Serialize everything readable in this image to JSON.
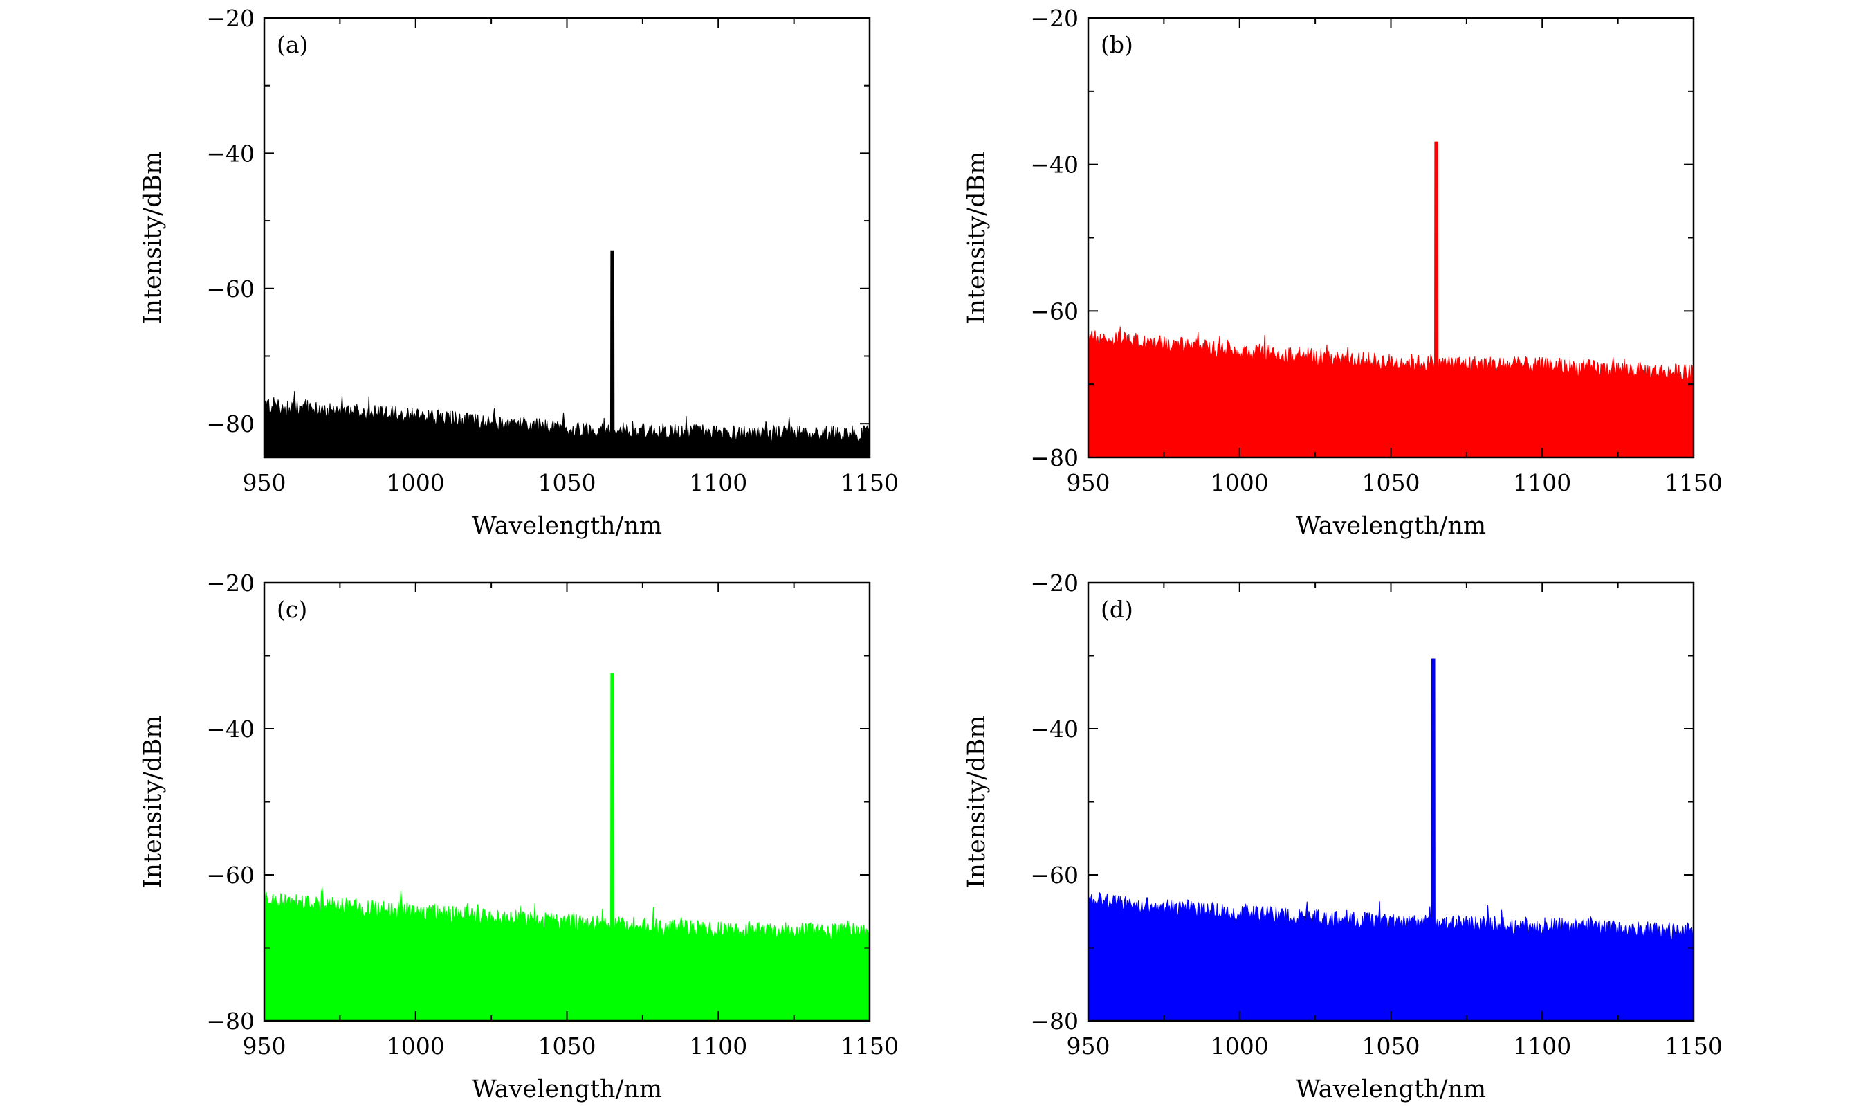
{
  "chart_data": [
    {
      "type": "line",
      "panel_label": "(a)",
      "color": "#000000",
      "xlabel": "Wavelength/nm",
      "ylabel": "Intensity/dBm",
      "xlim": [
        950,
        1150
      ],
      "ylim": [
        -85,
        -20
      ],
      "xticks": [
        950,
        1000,
        1050,
        1100,
        1150
      ],
      "xtick_labels": [
        "950",
        "1000",
        "1050",
        "1100",
        "1150"
      ],
      "yticks": [
        -80,
        -60,
        -40,
        -20
      ],
      "ytick_labels": [
        "−80",
        "−60",
        "−40",
        "−20"
      ],
      "noise_floor": {
        "x": [
          950,
          1000,
          1050,
          1100,
          1150
        ],
        "y": [
          -77.5,
          -78.8,
          -80.8,
          -81.3,
          -81.5
        ]
      },
      "noise_amplitude": 1.2,
      "peak": {
        "x": 1065,
        "y": -54.5
      }
    },
    {
      "type": "line",
      "panel_label": "(b)",
      "color": "#ff0000",
      "xlabel": "Wavelength/nm",
      "ylabel": "Intensity/dBm",
      "xlim": [
        950,
        1150
      ],
      "ylim": [
        -80,
        -20
      ],
      "xticks": [
        950,
        1000,
        1050,
        1100,
        1150
      ],
      "xtick_labels": [
        "950",
        "1000",
        "1050",
        "1100",
        "1150"
      ],
      "yticks": [
        -80,
        -60,
        -40,
        -20
      ],
      "ytick_labels": [
        "−80",
        "−60",
        "−40",
        "−20"
      ],
      "noise_floor": {
        "x": [
          950,
          1000,
          1050,
          1100,
          1150
        ],
        "y": [
          -63.5,
          -65.5,
          -67,
          -67.5,
          -68.5
        ]
      },
      "noise_amplitude": 1.2,
      "peak": {
        "x": 1065,
        "y": -37
      }
    },
    {
      "type": "line",
      "panel_label": "(c)",
      "color": "#00ff00",
      "xlabel": "Wavelength/nm",
      "ylabel": "Intensity/dBm",
      "xlim": [
        950,
        1150
      ],
      "ylim": [
        -80,
        -20
      ],
      "xticks": [
        950,
        1000,
        1050,
        1100,
        1150
      ],
      "xtick_labels": [
        "950",
        "1000",
        "1050",
        "1100",
        "1150"
      ],
      "yticks": [
        -80,
        -60,
        -40,
        -20
      ],
      "ytick_labels": [
        "−80",
        "−60",
        "−40",
        "−20"
      ],
      "noise_floor": {
        "x": [
          950,
          1000,
          1050,
          1100,
          1150
        ],
        "y": [
          -63.5,
          -65,
          -66.5,
          -67.5,
          -67.8
        ]
      },
      "noise_amplitude": 1.2,
      "peak": {
        "x": 1065,
        "y": -32.5
      }
    },
    {
      "type": "line",
      "panel_label": "(d)",
      "color": "#0000ff",
      "xlabel": "Wavelength/nm",
      "ylabel": "Intensity/dBm",
      "xlim": [
        950,
        1150
      ],
      "ylim": [
        -80,
        -20
      ],
      "xticks": [
        950,
        1000,
        1050,
        1100,
        1150
      ],
      "xtick_labels": [
        "950",
        "1000",
        "1050",
        "1100",
        "1150"
      ],
      "yticks": [
        -80,
        -60,
        -40,
        -20
      ],
      "ytick_labels": [
        "−80",
        "−60",
        "−40",
        "−20"
      ],
      "noise_floor": {
        "x": [
          950,
          1000,
          1050,
          1100,
          1150
        ],
        "y": [
          -63.5,
          -65.2,
          -66.5,
          -67,
          -67.8
        ]
      },
      "noise_amplitude": 1.2,
      "peak": {
        "x": 1064,
        "y": -30.5
      }
    }
  ]
}
